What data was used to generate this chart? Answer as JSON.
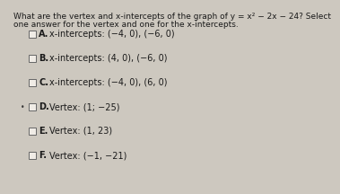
{
  "title_line1": "What are the vertex and x-intercepts of the graph of y = x² − 2x − 24? Select",
  "title_line2": "one answer for the vertex and one for the x-intercepts.",
  "options": [
    {
      "label": "A.",
      "text": "x-intercepts: (−4, 0), (−6, 0)",
      "selected": false,
      "dot": false
    },
    {
      "label": "B.",
      "text": "x-intercepts: (4, 0), (−6, 0)",
      "selected": false,
      "dot": false
    },
    {
      "label": "C.",
      "text": "x-intercepts: (−4, 0), (6, 0)",
      "selected": false,
      "dot": false
    },
    {
      "label": "D.",
      "text": "Vertex: (1; −25)",
      "selected": false,
      "dot": true
    },
    {
      "label": "E.",
      "text": "Vertex: (1, 23)",
      "selected": false,
      "dot": false
    },
    {
      "label": "F.",
      "text": "Vertex: (−1, −21)",
      "selected": false,
      "dot": false
    }
  ],
  "bg_color": "#cdc8bf",
  "text_color": "#1a1a1a",
  "checkbox_color": "#f0ece6",
  "checkbox_border": "#666666",
  "title_fontsize": 6.5,
  "option_fontsize": 7.0,
  "label_fontsize": 7.0,
  "dot_color": "#333333",
  "checkbox_size_pts": 7.5
}
